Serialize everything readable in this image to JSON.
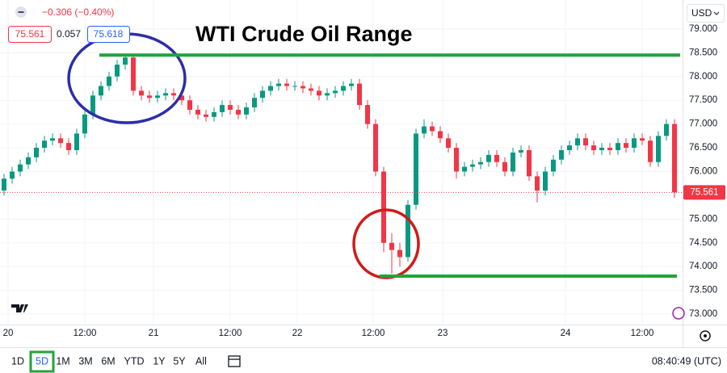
{
  "chart_data": {
    "type": "candlestick",
    "title": "WTI Crude Oil Range",
    "quote": {
      "change": "−0.306 (−0.40%)",
      "spread": "0.057",
      "buy": "75.618",
      "currency": "USD"
    },
    "last_price": 75.561,
    "levels": [
      78.45,
      73.8
    ],
    "up_color": "#089981",
    "down_color": "#f23645",
    "level_color": "#22a33a",
    "grid": true,
    "ylim": [
      72.78,
      79.61
    ],
    "yticks": [
      {
        "value": 73,
        "label": "73.000"
      },
      {
        "value": 73.5,
        "label": "73.500"
      },
      {
        "value": 74,
        "label": "74.000"
      },
      {
        "value": 74.5,
        "label": "74.500"
      },
      {
        "value": 75,
        "label": "75.000"
      },
      {
        "value": 75.5,
        "label": "75.500"
      },
      {
        "value": 76,
        "label": "76.000"
      },
      {
        "value": 76.5,
        "label": "76.500"
      },
      {
        "value": 77,
        "label": "77.000"
      },
      {
        "value": 77.5,
        "label": "77.500"
      },
      {
        "value": 78,
        "label": "78.000"
      },
      {
        "value": 78.5,
        "label": "78.500"
      },
      {
        "value": 79,
        "label": "79.000"
      }
    ],
    "xlim": [
      -0.5,
      84
    ],
    "xticks": [
      {
        "value": 0.5,
        "label": "20"
      },
      {
        "value": 10,
        "label": "12:00"
      },
      {
        "value": 18.5,
        "label": "21"
      },
      {
        "value": 28,
        "label": "12:00"
      },
      {
        "value": 36.3,
        "label": "22"
      },
      {
        "value": 45.7,
        "label": "12:00"
      },
      {
        "value": 54.3,
        "label": "23"
      },
      {
        "value": 69.5,
        "label": "24"
      },
      {
        "value": 79,
        "label": "12:00"
      }
    ],
    "open": [
      75.6,
      75.85,
      76.0,
      76.15,
      76.3,
      76.5,
      76.65,
      76.7,
      76.6,
      76.45,
      76.8,
      77.2,
      77.6,
      77.8,
      78.0,
      78.25,
      78.4,
      77.7,
      77.6,
      77.55,
      77.6,
      77.65,
      77.6,
      77.5,
      77.3,
      77.2,
      77.15,
      77.25,
      77.4,
      77.3,
      77.2,
      77.35,
      77.55,
      77.7,
      77.8,
      77.85,
      77.8,
      77.8,
      77.75,
      77.7,
      77.6,
      77.65,
      77.7,
      77.8,
      77.85,
      77.4,
      77.0,
      76.0,
      74.5,
      74.35,
      74.2,
      75.3,
      76.8,
      76.95,
      76.85,
      76.7,
      76.5,
      76.0,
      76.1,
      76.15,
      76.2,
      76.35,
      76.2,
      76.0,
      76.4,
      76.45,
      75.9,
      75.6,
      76.0,
      76.25,
      76.45,
      76.55,
      76.7,
      76.55,
      76.45,
      76.5,
      76.45,
      76.6,
      76.5,
      76.7,
      76.65,
      76.2,
      76.75,
      77.0
    ],
    "high": [
      75.95,
      76.1,
      76.25,
      76.4,
      76.6,
      76.75,
      76.8,
      76.8,
      76.7,
      76.9,
      77.3,
      77.7,
      77.9,
      78.1,
      78.35,
      78.45,
      78.45,
      77.8,
      77.7,
      77.7,
      77.75,
      77.75,
      77.7,
      77.6,
      77.4,
      77.3,
      77.35,
      77.5,
      77.5,
      77.4,
      77.45,
      77.65,
      77.8,
      77.9,
      77.95,
      77.95,
      77.9,
      77.9,
      77.85,
      77.8,
      77.75,
      77.8,
      77.9,
      77.95,
      77.95,
      77.5,
      77.1,
      76.1,
      74.7,
      74.5,
      75.4,
      76.9,
      77.1,
      77.05,
      76.95,
      76.8,
      76.6,
      76.2,
      76.25,
      76.3,
      76.45,
      76.45,
      76.3,
      76.5,
      76.55,
      76.55,
      76.0,
      76.1,
      76.35,
      76.55,
      76.65,
      76.8,
      76.8,
      76.65,
      76.6,
      76.6,
      76.7,
      76.7,
      76.8,
      76.8,
      76.75,
      76.85,
      77.1,
      77.1
    ],
    "low": [
      75.5,
      75.75,
      75.9,
      76.05,
      76.2,
      76.4,
      76.55,
      76.5,
      76.35,
      76.35,
      76.7,
      77.1,
      77.5,
      77.7,
      77.9,
      78.15,
      77.6,
      77.5,
      77.45,
      77.45,
      77.5,
      77.5,
      77.4,
      77.2,
      77.1,
      77.05,
      77.05,
      77.15,
      77.2,
      77.1,
      77.1,
      77.25,
      77.45,
      77.6,
      77.7,
      77.7,
      77.7,
      77.65,
      77.6,
      77.5,
      77.5,
      77.55,
      77.6,
      77.7,
      77.3,
      76.9,
      75.9,
      74.3,
      73.85,
      74.0,
      74.1,
      75.2,
      76.7,
      76.75,
      76.6,
      76.4,
      75.85,
      75.9,
      76.0,
      76.05,
      76.1,
      76.1,
      75.9,
      75.9,
      76.3,
      75.8,
      75.35,
      75.5,
      75.9,
      76.15,
      76.35,
      76.45,
      76.45,
      76.35,
      76.35,
      76.35,
      76.35,
      76.4,
      76.4,
      76.55,
      76.1,
      76.1,
      76.65,
      75.45
    ],
    "close": [
      75.85,
      76.0,
      76.15,
      76.3,
      76.5,
      76.65,
      76.7,
      76.6,
      76.45,
      76.8,
      77.2,
      77.6,
      77.8,
      78.0,
      78.25,
      78.4,
      77.7,
      77.6,
      77.55,
      77.6,
      77.65,
      77.6,
      77.5,
      77.3,
      77.2,
      77.15,
      77.25,
      77.4,
      77.3,
      77.2,
      77.35,
      77.55,
      77.7,
      77.8,
      77.85,
      77.8,
      77.8,
      77.75,
      77.7,
      77.6,
      77.65,
      77.7,
      77.8,
      77.85,
      77.4,
      77.0,
      76.0,
      74.5,
      74.35,
      74.2,
      75.3,
      76.8,
      76.95,
      76.85,
      76.7,
      76.5,
      76.0,
      76.1,
      76.15,
      76.2,
      76.35,
      76.2,
      76.0,
      76.4,
      76.45,
      75.9,
      75.6,
      76.0,
      76.25,
      76.45,
      76.55,
      76.7,
      76.55,
      76.45,
      76.5,
      76.45,
      76.6,
      76.5,
      76.7,
      76.65,
      76.2,
      76.75,
      77.0,
      75.561
    ],
    "timeframes": [
      "1D",
      "5D",
      "1M",
      "3M",
      "6M",
      "YTD",
      "1Y",
      "5Y",
      "All"
    ],
    "clock": "08:40:49 (UTC)"
  }
}
